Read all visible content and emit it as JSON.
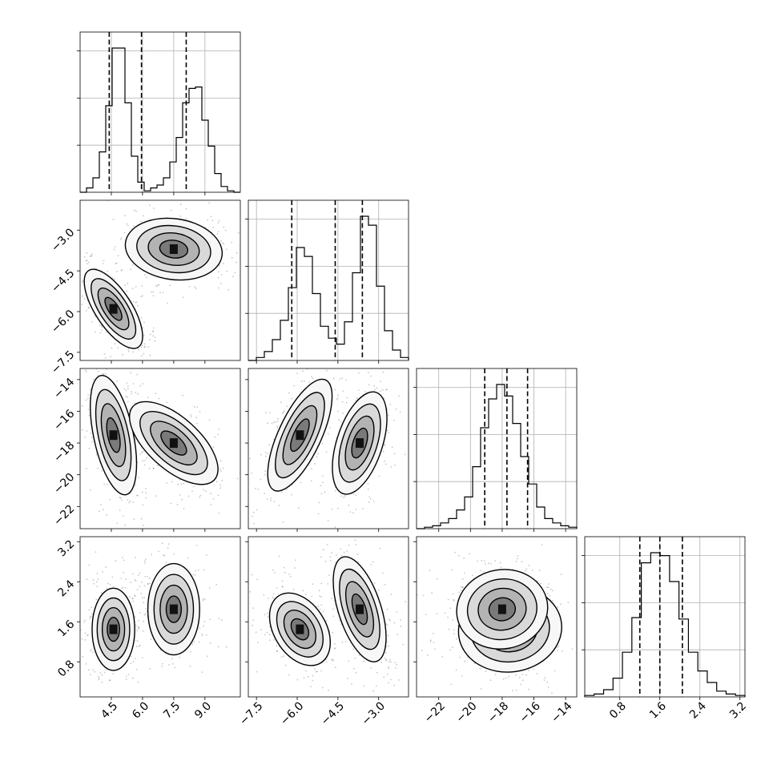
{
  "chart_data": {
    "type": "corner",
    "n_params": 4,
    "params": [
      {
        "range": [
          3.0,
          10.7
        ],
        "ticks": [
          4.5,
          6.0,
          7.5,
          9.0
        ],
        "tick_labels": [
          "4.5",
          "6.0",
          "7.5",
          "9.0"
        ]
      },
      {
        "range": [
          -7.8,
          -1.9
        ],
        "ticks": [
          -7.5,
          -6.0,
          -4.5,
          -3.0
        ],
        "tick_labels": [
          "−7.5",
          "−6.0",
          "−4.5",
          "−3.0"
        ]
      },
      {
        "range": [
          -23.4,
          -13.3
        ],
        "ticks": [
          -22,
          -20,
          -18,
          -16,
          -14
        ],
        "tick_labels": [
          "−22",
          "−20",
          "−18",
          "−16",
          "−14"
        ]
      },
      {
        "range": [
          0.1,
          3.3
        ],
        "ticks": [
          0.8,
          1.6,
          2.4,
          3.2
        ],
        "tick_labels": [
          "0.8",
          "1.6",
          "2.4",
          "3.2"
        ]
      }
    ],
    "histograms": [
      {
        "edges_range": [
          3.0,
          10.7
        ],
        "counts": [
          0,
          0.03,
          0.1,
          0.28,
          0.6,
          1.0,
          1.0,
          0.62,
          0.25,
          0.07,
          0.01,
          0.03,
          0.05,
          0.1,
          0.21,
          0.38,
          0.62,
          0.72,
          0.73,
          0.5,
          0.32,
          0.13,
          0.04,
          0.01,
          0
        ],
        "quantiles": [
          4.4,
          5.95,
          8.1
        ]
      },
      {
        "edges_range": [
          -7.8,
          -1.9
        ],
        "counts": [
          0,
          0.02,
          0.06,
          0.14,
          0.27,
          0.49,
          0.76,
          0.7,
          0.45,
          0.23,
          0.15,
          0.11,
          0.26,
          0.59,
          0.97,
          0.91,
          0.5,
          0.2,
          0.07,
          0.02
        ],
        "quantiles": [
          -6.2,
          -4.6,
          -3.6
        ]
      },
      {
        "edges_range": [
          -23.4,
          -13.3
        ],
        "counts": [
          0,
          0.01,
          0.02,
          0.04,
          0.07,
          0.13,
          0.22,
          0.43,
          0.7,
          0.9,
          1.0,
          0.92,
          0.73,
          0.5,
          0.31,
          0.15,
          0.07,
          0.04,
          0.02,
          0.01
        ],
        "quantiles": [
          -19.1,
          -17.7,
          -16.4
        ]
      },
      {
        "edges_range": [
          0.1,
          3.3
        ],
        "counts": [
          0.01,
          0.02,
          0.05,
          0.13,
          0.31,
          0.55,
          0.93,
          1.0,
          0.98,
          0.8,
          0.54,
          0.31,
          0.18,
          0.1,
          0.04,
          0.02,
          0.01
        ],
        "quantiles": [
          1.2,
          1.6,
          2.05
        ]
      }
    ],
    "modes": [
      {
        "weight": 0.5,
        "mean": [
          4.6,
          -5.9,
          -17.5,
          1.45
        ]
      },
      {
        "weight": 0.5,
        "mean": [
          7.5,
          -3.7,
          -18.0,
          1.85
        ]
      }
    ],
    "grid": true
  }
}
